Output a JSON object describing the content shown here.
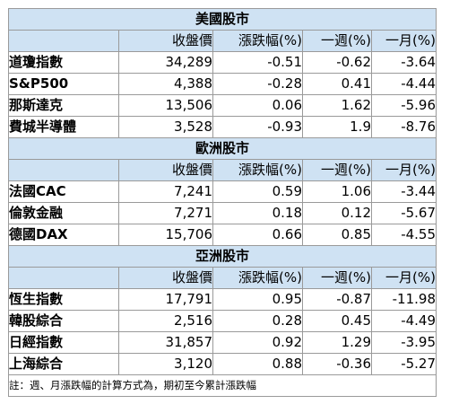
{
  "sections": [
    {
      "title": "美國股市",
      "headers": [
        "",
        "收盤價",
        "漲跌幅(%)",
        "一週(%)",
        "一月(%)"
      ],
      "rows": [
        [
          "道瓊指數",
          "34,289",
          "-0.51",
          "-0.62",
          "-3.64"
        ],
        [
          "S&P500",
          "4,388",
          "-0.28",
          "0.41",
          "-4.44"
        ],
        [
          "那斯達克",
          "13,506",
          "0.06",
          "1.62",
          "-5.96"
        ],
        [
          "費城半導體",
          "3,528",
          "-0.93",
          "1.9",
          "-8.76"
        ]
      ]
    },
    {
      "title": "歐洲股市",
      "headers": [
        "",
        "收盤價",
        "漲跌幅(%)",
        "一週(%)",
        "一月(%)"
      ],
      "rows": [
        [
          "法國CAC",
          "7,241",
          "0.59",
          "1.06",
          "-3.44"
        ],
        [
          "倫敦金融",
          "7,271",
          "0.18",
          "0.12",
          "-5.67"
        ],
        [
          "德國DAX",
          "15,706",
          "0.66",
          "0.85",
          "-4.55"
        ]
      ]
    },
    {
      "title": "亞洲股市",
      "headers": [
        "",
        "收盤價",
        "漲跌幅(%)",
        "一週(%)",
        "一月(%)"
      ],
      "rows": [
        [
          "恆生指數",
          "17,791",
          "0.95",
          "-0.87",
          "-11.98"
        ],
        [
          "韓股綜合",
          "2,516",
          "0.28",
          "0.45",
          "-4.49"
        ],
        [
          "日經指數",
          "31,857",
          "0.92",
          "1.29",
          "-3.95"
        ],
        [
          "上海綜合",
          "3,120",
          "0.88",
          "-0.36",
          "-5.27"
        ]
      ]
    }
  ],
  "note": "註：週、月漲跌幅的計算方式為，期初至今累計漲跌幅",
  "colors": {
    "header_bg": "#cfe2f3",
    "border": "#9a9a9a"
  }
}
